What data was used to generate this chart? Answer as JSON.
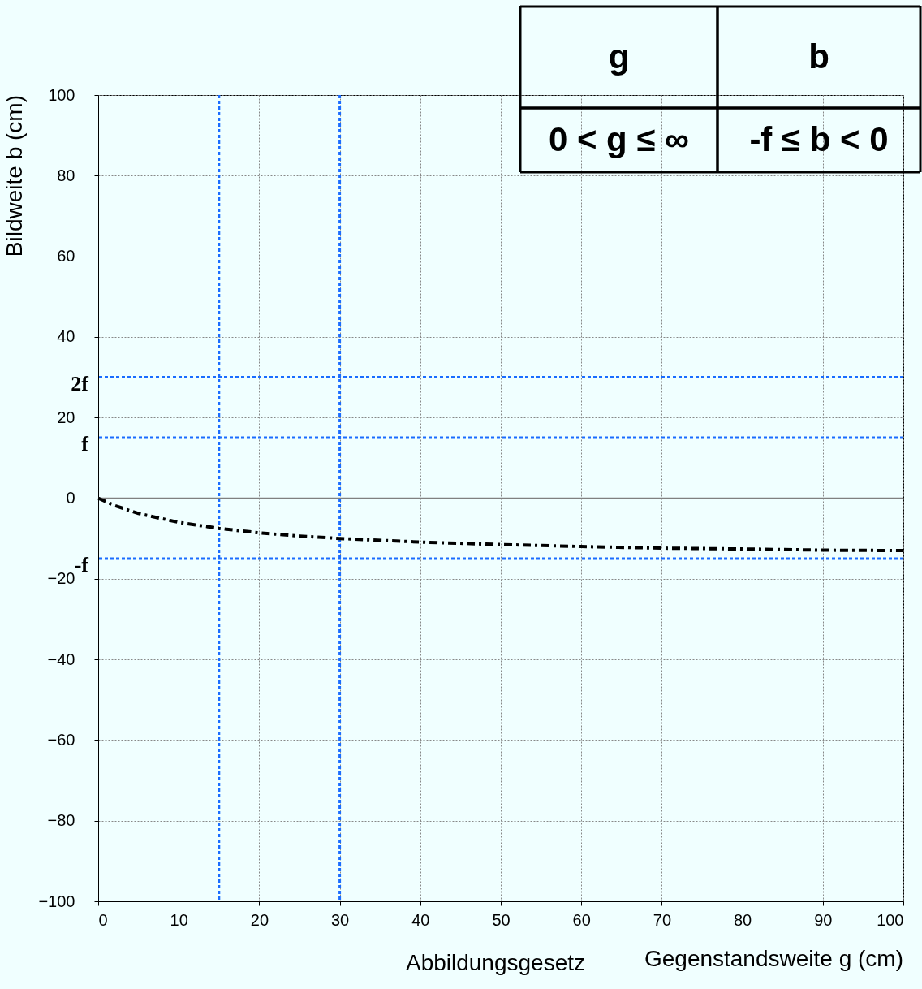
{
  "chart_data": {
    "type": "line",
    "xlabel": "Gegenstandsweite g (cm)",
    "ylabel": "Bildweite b (cm)",
    "x": [
      0,
      2,
      5,
      10,
      15,
      20,
      25,
      30,
      40,
      50,
      60,
      70,
      80,
      90,
      100
    ],
    "series": [
      {
        "color": "#000000",
        "values": [
          0,
          -1.8,
          -3.8,
          -6,
          -7.5,
          -8.6,
          -9.4,
          -10,
          -10.9,
          -11.5,
          -12,
          -12.4,
          -12.6,
          -12.9,
          -13
        ]
      }
    ],
    "xlim": [
      0,
      100
    ],
    "xticks": [
      0,
      10,
      20,
      30,
      40,
      50,
      60,
      70,
      80,
      90,
      100
    ],
    "ylim": [
      -100,
      100
    ],
    "yticks": [
      -100,
      -80,
      -60,
      -40,
      -20,
      0,
      20,
      40,
      60,
      80,
      100
    ],
    "grid": true,
    "marker": "none",
    "line_style": "dashed",
    "ref_lines": [
      {
        "axis": "x",
        "value": 15,
        "color": "#1a6cff",
        "line_style": "dotted"
      },
      {
        "axis": "x",
        "value": 30,
        "color": "#1a6cff",
        "line_style": "dotted"
      },
      {
        "axis": "y",
        "value": 30,
        "label": "2f",
        "color": "#1a6cff",
        "line_style": "dotted"
      },
      {
        "axis": "y",
        "value": 15,
        "label": "f",
        "color": "#1a6cff",
        "line_style": "dotted"
      },
      {
        "axis": "y",
        "value": -15,
        "label": "-f",
        "color": "#1a6cff",
        "line_style": "dotted"
      },
      {
        "axis": "y",
        "value": 0,
        "color": "#808080",
        "line_style": "solid"
      }
    ],
    "annotations": [
      "g",
      "b",
      "0 < g ≤ ∞",
      "-f  ≤ b < 0",
      "Abbildungsgesetz"
    ]
  }
}
